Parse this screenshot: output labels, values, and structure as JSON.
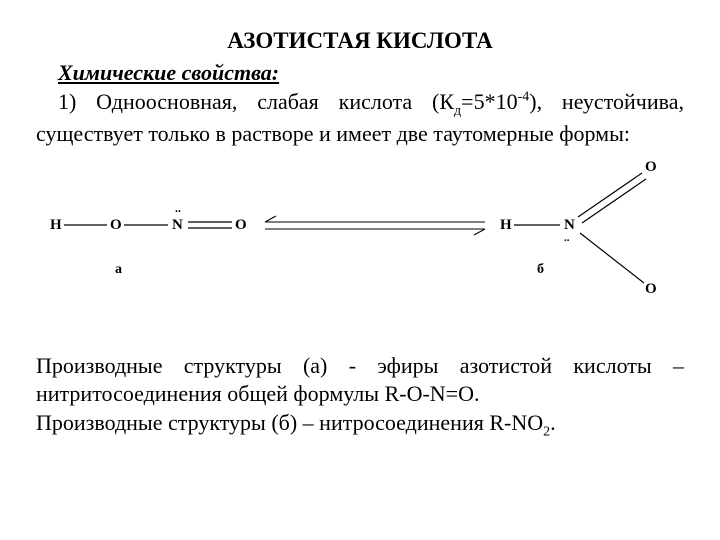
{
  "title": "АЗОТИСТАЯ КИСЛОТА",
  "subtitle": "Химические свойства:",
  "intro_html": "1) Одноосновная, слабая кислота (К<sub>д</sub>=5*10<sup>-4</sup>), неустойчива, существует только в растворе и имеет две таутомерные формы:",
  "struct_a": {
    "H": "H",
    "O1": "O",
    "N": "N",
    "O2": "O",
    "dots": "..",
    "label": "а"
  },
  "struct_b": {
    "H": "H",
    "N": "N",
    "O_top": "O",
    "O_bot": "O",
    "dots": "..",
    "label": "б"
  },
  "footer1_html": "Производные структуры (а) - эфиры азотистой кислоты – нитритосоединения общей формулы R-O-N=O.",
  "footer2_html": "Производные структуры (б) – нитросоединения R-NO<sub>2</sub>.",
  "colors": {
    "text": "#000000",
    "bg": "#ffffff",
    "line": "#000000"
  }
}
